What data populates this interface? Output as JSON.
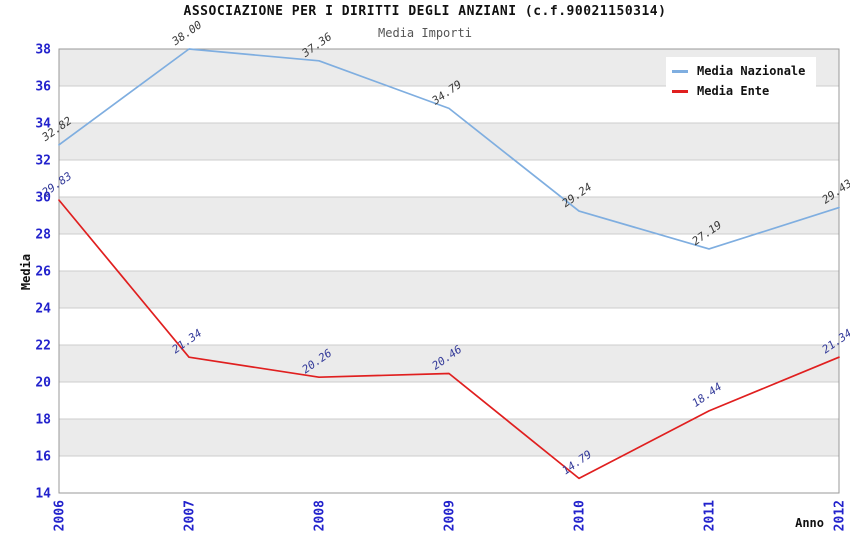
{
  "chart_data": {
    "type": "line",
    "title": "ASSOCIAZIONE PER I DIRITTI DEGLI ANZIANI (c.f.90021150314)",
    "subtitle": "Media Importi",
    "xlabel": "Anno",
    "ylabel": "Media",
    "categories": [
      "2006",
      "2007",
      "2008",
      "2009",
      "2010",
      "2011",
      "2012"
    ],
    "ylim": [
      14,
      38
    ],
    "ytick_step": 2,
    "grid": "horizontal-bands-alternating",
    "legend_position": "top-right-inside",
    "series": [
      {
        "name": "Media Nazionale",
        "color": "#7FAEE0",
        "label_color": "#3A3A3A",
        "values": [
          32.82,
          38.0,
          37.36,
          34.79,
          29.24,
          27.19,
          29.43
        ]
      },
      {
        "name": "Media Ente",
        "color": "#E01F1F",
        "label_color": "#333A99",
        "values": [
          29.83,
          21.34,
          20.26,
          20.46,
          14.79,
          18.44,
          21.34
        ]
      }
    ],
    "colors": {
      "tick_label": "#2222CC",
      "band_gray": "#EBEBEB",
      "band_white": "#FFFFFF",
      "gridline": "#CCCCCC",
      "plot_border": "#999999",
      "title_text": "#111111",
      "subtitle_text": "#555555"
    }
  }
}
